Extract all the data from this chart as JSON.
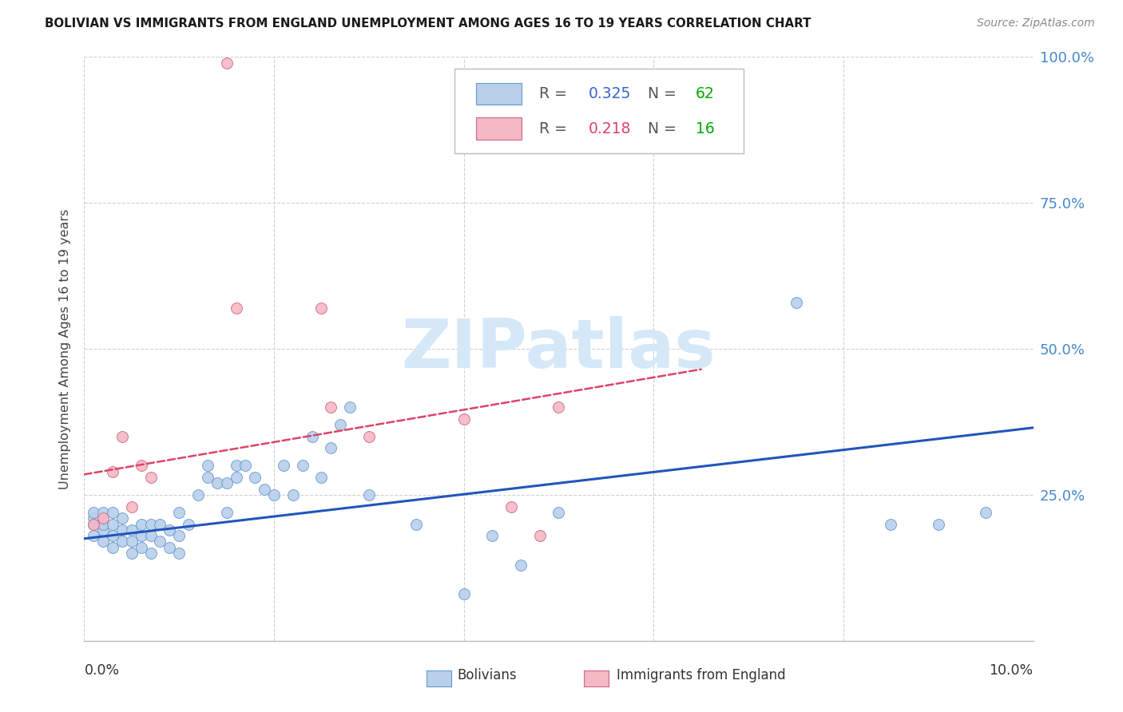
{
  "title": "BOLIVIAN VS IMMIGRANTS FROM ENGLAND UNEMPLOYMENT AMONG AGES 16 TO 19 YEARS CORRELATION CHART",
  "source": "Source: ZipAtlas.com",
  "ylabel": "Unemployment Among Ages 16 to 19 years",
  "xmin": 0.0,
  "xmax": 0.1,
  "ymin": 0.0,
  "ymax": 1.0,
  "yticks": [
    0.0,
    0.25,
    0.5,
    0.75,
    1.0
  ],
  "ytick_labels": [
    "",
    "25.0%",
    "50.0%",
    "75.0%",
    "100.0%"
  ],
  "bolivia_fill_color": "#b8d0ea",
  "england_fill_color": "#f5b8c5",
  "bolivia_edge_color": "#6699cc",
  "england_edge_color": "#cc6688",
  "bolivia_trend_color": "#2255bb",
  "england_trend_color": "#dd4466",
  "watermark_color": "#d5e8f8",
  "legend_r_bolivia": "0.325",
  "legend_n_bolivia": "62",
  "legend_r_england": "0.218",
  "legend_n_england": "16",
  "r_value_color": "#3366cc",
  "n_value_color": "#00aa00",
  "r_england_color": "#dd4466",
  "bolivia_scatter_x": [
    0.001,
    0.001,
    0.001,
    0.001,
    0.002,
    0.002,
    0.002,
    0.002,
    0.003,
    0.003,
    0.003,
    0.003,
    0.004,
    0.004,
    0.004,
    0.005,
    0.005,
    0.005,
    0.006,
    0.006,
    0.006,
    0.007,
    0.007,
    0.007,
    0.008,
    0.008,
    0.009,
    0.009,
    0.01,
    0.01,
    0.01,
    0.011,
    0.012,
    0.013,
    0.013,
    0.014,
    0.015,
    0.015,
    0.016,
    0.016,
    0.017,
    0.018,
    0.019,
    0.02,
    0.021,
    0.022,
    0.023,
    0.024,
    0.025,
    0.026,
    0.027,
    0.028,
    0.03,
    0.035,
    0.04,
    0.043,
    0.046,
    0.05,
    0.075,
    0.085,
    0.09,
    0.095
  ],
  "bolivia_scatter_y": [
    0.18,
    0.2,
    0.21,
    0.22,
    0.17,
    0.19,
    0.2,
    0.22,
    0.16,
    0.18,
    0.2,
    0.22,
    0.17,
    0.19,
    0.21,
    0.15,
    0.17,
    0.19,
    0.16,
    0.18,
    0.2,
    0.15,
    0.18,
    0.2,
    0.17,
    0.2,
    0.16,
    0.19,
    0.15,
    0.18,
    0.22,
    0.2,
    0.25,
    0.28,
    0.3,
    0.27,
    0.22,
    0.27,
    0.28,
    0.3,
    0.3,
    0.28,
    0.26,
    0.25,
    0.3,
    0.25,
    0.3,
    0.35,
    0.28,
    0.33,
    0.37,
    0.4,
    0.25,
    0.2,
    0.08,
    0.18,
    0.13,
    0.22,
    0.58,
    0.2,
    0.2,
    0.22
  ],
  "england_scatter_x": [
    0.001,
    0.002,
    0.003,
    0.004,
    0.005,
    0.006,
    0.007,
    0.015,
    0.016,
    0.025,
    0.026,
    0.03,
    0.04,
    0.045,
    0.048,
    0.05
  ],
  "england_scatter_y": [
    0.2,
    0.21,
    0.29,
    0.35,
    0.23,
    0.3,
    0.28,
    0.99,
    0.57,
    0.57,
    0.4,
    0.35,
    0.38,
    0.23,
    0.18,
    0.4
  ],
  "bolivia_trend_x0": 0.0,
  "bolivia_trend_y0": 0.175,
  "bolivia_trend_x1": 0.1,
  "bolivia_trend_y1": 0.365,
  "england_trend_x0": 0.0,
  "england_trend_y0": 0.285,
  "england_trend_x1": 0.065,
  "england_trend_y1": 0.465
}
